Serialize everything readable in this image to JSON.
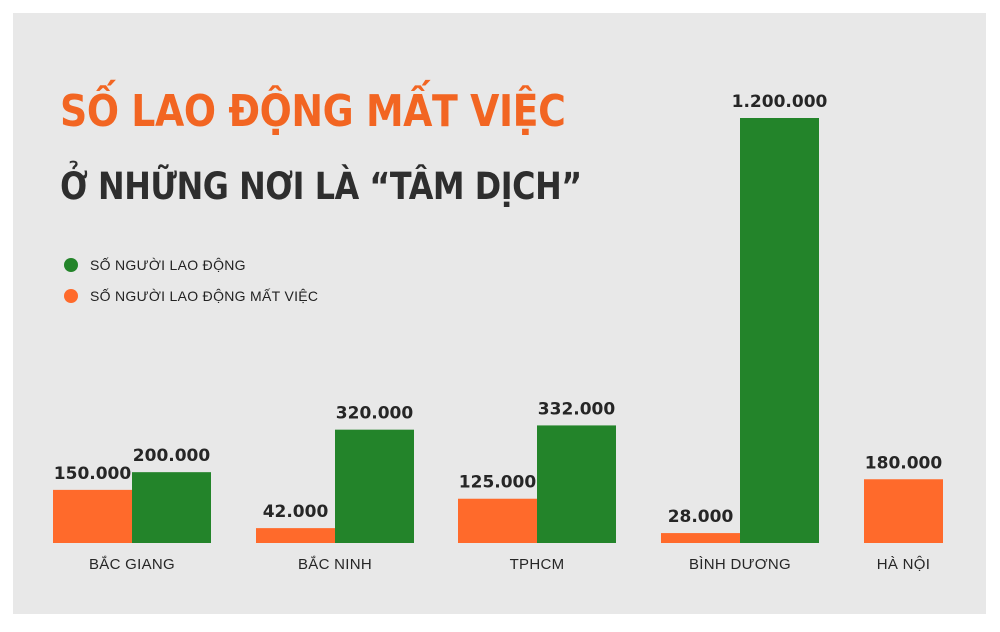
{
  "title": "SỐ LAO ĐỘNG MẤT VIỆC",
  "subtitle": "Ở NHỮNG NƠI LÀ “TÂM DỊCH”",
  "legend": [
    {
      "label": "SỐ NGƯỜI LAO ĐỘNG",
      "color": "#23842a"
    },
    {
      "label": "SỐ NGƯỜI LAO ĐỘNG MẤT VIỆC",
      "color": "#ff6a2b"
    }
  ],
  "chart_data": {
    "type": "bar",
    "title": "SỐ LAO ĐỘNG MẤT VIỆC",
    "subtitle": "Ở NHỮNG NƠI LÀ “TÂM DỊCH”",
    "categories": [
      "BẮC GIANG",
      "BẮC NINH",
      "TPHCM",
      "BÌNH DƯƠNG",
      "HÀ NỘI"
    ],
    "series": [
      {
        "name": "SỐ NGƯỜI LAO ĐỘNG MẤT VIỆC",
        "color": "#ff6a2b",
        "values": [
          150000,
          42000,
          125000,
          28000,
          180000
        ],
        "labels": [
          "150.000",
          "42.000",
          "125.000",
          "28.000",
          "180.000"
        ]
      },
      {
        "name": "SỐ NGƯỜI LAO ĐỘNG",
        "color": "#23842a",
        "values": [
          200000,
          320000,
          332000,
          1200000,
          null
        ],
        "labels": [
          "200.000",
          "320.000",
          "332.000",
          "1.200.000",
          ""
        ]
      }
    ],
    "ylim": [
      0,
      1200000
    ],
    "grid": false,
    "legend_position": "top-left"
  }
}
